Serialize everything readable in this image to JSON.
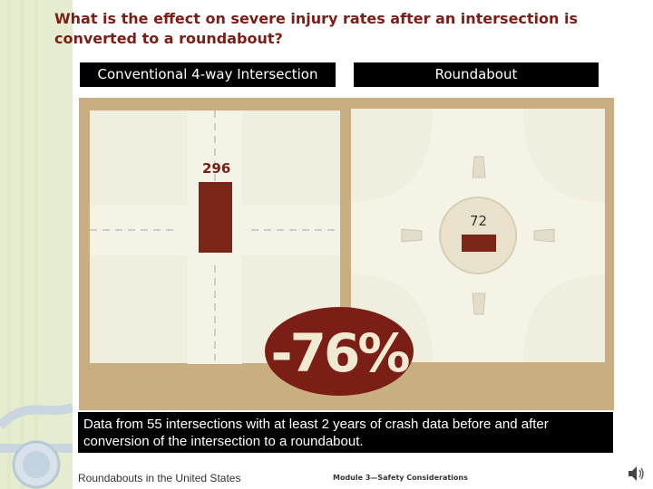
{
  "title": "What is the effect on severe injury rates after an intersection is converted to a roundabout?",
  "panels": {
    "left_header": "Conventional 4-way Intersection",
    "right_header": "Roundabout"
  },
  "chart_data": {
    "type": "bar",
    "categories": [
      "Conventional 4-way Intersection",
      "Roundabout"
    ],
    "values": [
      296,
      72
    ],
    "value_labels": [
      "296",
      "72"
    ],
    "change_label": "-76%",
    "ylim": [
      0,
      296
    ],
    "grid": false,
    "colors": {
      "bar": "#7b2619",
      "panel": "#c8ae81",
      "road": "#f5f2e6",
      "block": "#f0eedf"
    }
  },
  "caption": "Data from 55 intersections with at least 2 years of crash data before and after conversion of the intersection to a roundabout.",
  "footer": {
    "left": "Roundabouts in the United States",
    "right": "Module 3—Safety Considerations"
  },
  "icons": {
    "speaker": "speaker-icon"
  }
}
